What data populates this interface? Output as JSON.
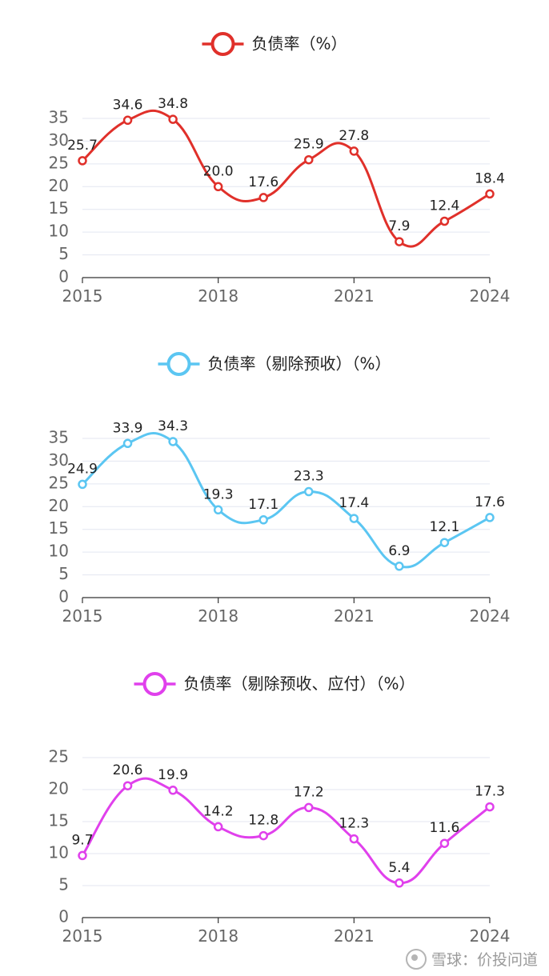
{
  "chart_data": [
    {
      "type": "line",
      "legend": "负债率（%）",
      "color": "#e0302a",
      "x": [
        2015,
        2016,
        2017,
        2018,
        2019,
        2020,
        2021,
        2022,
        2023,
        2024
      ],
      "values": [
        25.7,
        34.6,
        34.8,
        20.0,
        17.6,
        25.9,
        27.8,
        7.9,
        12.4,
        18.4
      ],
      "labels": [
        "25.7",
        "34.6",
        "34.8",
        "20.0",
        "17.6",
        "25.9",
        "27.8",
        "7.9",
        "12.4",
        "18.4"
      ],
      "x_ticks": [
        "2015",
        "2018",
        "2021",
        "2024"
      ],
      "y_ticks": [
        "0",
        "5",
        "10",
        "15",
        "20",
        "25",
        "30",
        "35"
      ],
      "ylim": [
        0,
        35
      ],
      "grid": true,
      "legend_position": "top-center"
    },
    {
      "type": "line",
      "legend": "负债率（剔除预收）（%）",
      "color": "#5bc6f2",
      "x": [
        2015,
        2016,
        2017,
        2018,
        2019,
        2020,
        2021,
        2022,
        2023,
        2024
      ],
      "values": [
        24.9,
        33.9,
        34.3,
        19.3,
        17.1,
        23.3,
        17.4,
        6.9,
        12.1,
        17.6
      ],
      "labels": [
        "24.9",
        "33.9",
        "34.3",
        "19.3",
        "17.1",
        "23.3",
        "17.4",
        "6.9",
        "12.1",
        "17.6"
      ],
      "x_ticks": [
        "2015",
        "2018",
        "2021",
        "2024"
      ],
      "y_ticks": [
        "0",
        "5",
        "10",
        "15",
        "20",
        "25",
        "30",
        "35"
      ],
      "ylim": [
        0,
        35
      ],
      "grid": true,
      "legend_position": "top-center"
    },
    {
      "type": "line",
      "legend": "负债率（剔除预收、应付）（%）",
      "color": "#e040ec",
      "x": [
        2015,
        2016,
        2017,
        2018,
        2019,
        2020,
        2021,
        2022,
        2023,
        2024
      ],
      "values": [
        9.7,
        20.6,
        19.9,
        14.2,
        12.8,
        17.2,
        12.3,
        5.4,
        11.6,
        17.3
      ],
      "labels": [
        "9.7",
        "20.6",
        "19.9",
        "14.2",
        "12.8",
        "17.2",
        "12.3",
        "5.4",
        "11.6",
        "17.3"
      ],
      "x_ticks": [
        "2015",
        "2018",
        "2021",
        "2024"
      ],
      "y_ticks": [
        "0",
        "5",
        "10",
        "15",
        "20",
        "25"
      ],
      "ylim": [
        0,
        25
      ],
      "grid": true,
      "legend_position": "top-center"
    }
  ],
  "watermark": {
    "text": "雪球：价投问道"
  }
}
